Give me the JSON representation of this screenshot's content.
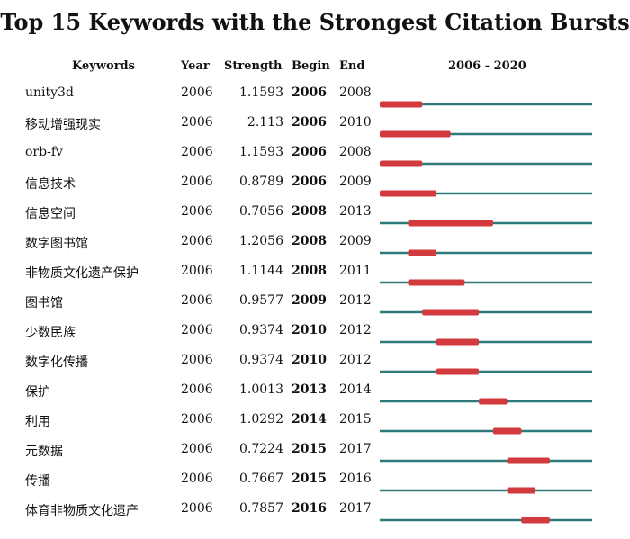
{
  "chart_data": {
    "type": "table",
    "title": "Top 15 Keywords with the Strongest Citation Bursts",
    "columns": [
      "Keywords",
      "Year",
      "Strength",
      "Begin",
      "End",
      "2006 - 2020"
    ],
    "range": [
      2006,
      2020
    ],
    "colors": {
      "line": "#2e7a7a",
      "burst": "#d33a3e"
    },
    "rows": [
      {
        "keyword": "unity3d",
        "year": "2006",
        "strength": "1.1593",
        "begin": 2006,
        "end": 2008
      },
      {
        "keyword": "移动增强现实",
        "year": "2006",
        "strength": "2.113",
        "begin": 2006,
        "end": 2010
      },
      {
        "keyword": "orb-fv",
        "year": "2006",
        "strength": "1.1593",
        "begin": 2006,
        "end": 2008
      },
      {
        "keyword": "信息技术",
        "year": "2006",
        "strength": "0.8789",
        "begin": 2006,
        "end": 2009
      },
      {
        "keyword": "信息空间",
        "year": "2006",
        "strength": "0.7056",
        "begin": 2008,
        "end": 2013
      },
      {
        "keyword": "数字图书馆",
        "year": "2006",
        "strength": "1.2056",
        "begin": 2008,
        "end": 2009
      },
      {
        "keyword": "非物质文化遗产保护",
        "year": "2006",
        "strength": "1.1144",
        "begin": 2008,
        "end": 2011
      },
      {
        "keyword": "图书馆",
        "year": "2006",
        "strength": "0.9577",
        "begin": 2009,
        "end": 2012
      },
      {
        "keyword": "少数民族",
        "year": "2006",
        "strength": "0.9374",
        "begin": 2010,
        "end": 2012
      },
      {
        "keyword": "数字化传播",
        "year": "2006",
        "strength": "0.9374",
        "begin": 2010,
        "end": 2012
      },
      {
        "keyword": "保护",
        "year": "2006",
        "strength": "1.0013",
        "begin": 2013,
        "end": 2014
      },
      {
        "keyword": "利用",
        "year": "2006",
        "strength": "1.0292",
        "begin": 2014,
        "end": 2015
      },
      {
        "keyword": "元数据",
        "year": "2006",
        "strength": "0.7224",
        "begin": 2015,
        "end": 2017
      },
      {
        "keyword": "传播",
        "year": "2006",
        "strength": "0.7667",
        "begin": 2015,
        "end": 2016
      },
      {
        "keyword": "体育非物质文化遗产",
        "year": "2006",
        "strength": "0.7857",
        "begin": 2016,
        "end": 2017
      }
    ]
  }
}
